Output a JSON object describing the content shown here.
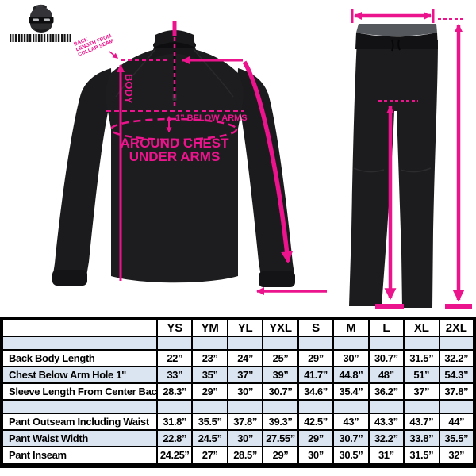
{
  "brand": {
    "icon": "ninja-mascot-icon"
  },
  "jacket_annotations": {
    "neck_note_lines": [
      "BACK",
      "LENGTH FROM",
      "COLLAR SEAM"
    ],
    "body_label": "BODY",
    "below_arms_label": "1” BELOW ARMS",
    "chest_label_line1": "AROUND CHEST",
    "chest_label_line2": "UNDER ARMS"
  },
  "size_table": {
    "sizes": [
      "YS",
      "YM",
      "YL",
      "YXL",
      "S",
      "M",
      "L",
      "XL",
      "2XL"
    ],
    "groups": [
      {
        "rows": [
          {
            "label": "Back Body Length",
            "values": [
              "22”",
              "23”",
              "24”",
              "25”",
              "29”",
              "30”",
              "30.7”",
              "31.5”",
              "32.2”"
            ]
          },
          {
            "label": "Chest Below Arm Hole 1\"",
            "values": [
              "33”",
              "35”",
              "37”",
              "39”",
              "41.7”",
              "44.8”",
              "48”",
              "51”",
              "54.3”"
            ]
          },
          {
            "label": "Sleeve Length From Center Back",
            "values": [
              "28.3”",
              "29”",
              "30”",
              "30.7”",
              "34.6”",
              "35.4”",
              "36.2”",
              "37”",
              "37.8”"
            ]
          }
        ]
      },
      {
        "rows": [
          {
            "label": "Pant Outseam Including Waist",
            "values": [
              "31.8”",
              "35.5”",
              "37.8”",
              "39.3”",
              "42.5”",
              "43”",
              "43.3”",
              "43.7”",
              "44”"
            ]
          },
          {
            "label": "Pant Waist Width",
            "values": [
              "22.8”",
              "24.5”",
              "30”",
              "27.55”",
              "29”",
              "30.7”",
              "32.2”",
              "33.8”",
              "35.5”"
            ]
          },
          {
            "label": "Pant Inseam",
            "values": [
              "24.25”",
              "27”",
              "28.5”",
              "29”",
              "30”",
              "30.5”",
              "31”",
              "31.5”",
              "32”"
            ]
          }
        ]
      }
    ]
  },
  "colors": {
    "accent": "#ec148c",
    "table_alt_row": "#dbe5f1",
    "garment": "#1c1c1e"
  }
}
